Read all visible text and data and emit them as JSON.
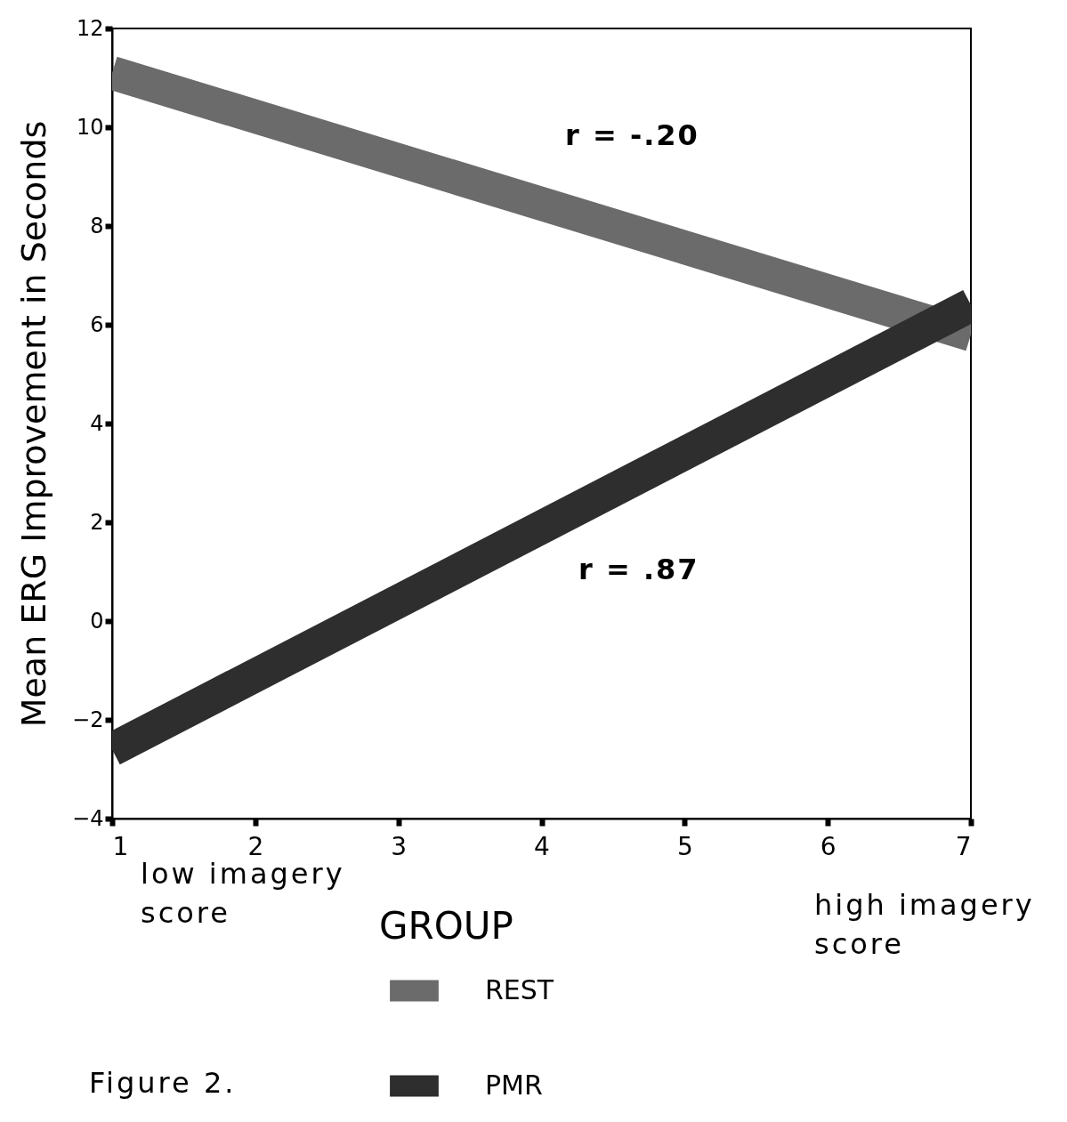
{
  "chart_data": {
    "type": "line",
    "ylabel": "Mean ERG Improvement in Seconds",
    "legend_title": "GROUP",
    "legend": "bottom",
    "x": [
      1,
      7
    ],
    "xlim": [
      1,
      7
    ],
    "xticks": [
      1,
      2,
      3,
      4,
      5,
      6,
      7
    ],
    "ylim": [
      -4,
      12
    ],
    "yticks": [
      -4,
      -2,
      0,
      2,
      4,
      6,
      8,
      10,
      12
    ],
    "series": [
      {
        "name": "REST",
        "color": "#6b6b6b",
        "values": [
          11.1,
          5.8
        ]
      },
      {
        "name": "PMR",
        "color": "#2e2e2e",
        "values": [
          -2.6,
          6.4
        ]
      }
    ],
    "annotations": [
      "r = -.20",
      "r = .87",
      "low imagery score",
      "high imagery score",
      "Figure 2."
    ]
  }
}
